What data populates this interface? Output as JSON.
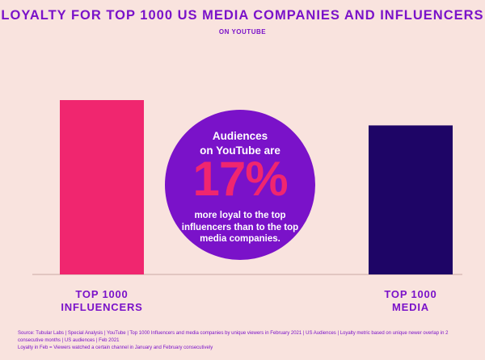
{
  "colors": {
    "background": "#f9e3de",
    "accent": "#7a12c9",
    "influencers_bar": "#f0266f",
    "media_bar": "#1e0566",
    "highlight": "#f0266f"
  },
  "chart_data": {
    "type": "bar",
    "title": "LOYALTY FOR TOP 1000 US MEDIA COMPANIES AND INFLUENCERS",
    "subtitle": "ON YOUTUBE",
    "categories": [
      "TOP 1000\nINFLUENCERS",
      "TOP 1000\nMEDIA"
    ],
    "values": [
      117,
      100
    ],
    "ylim": [
      0,
      117
    ],
    "grid": false,
    "annotation": {
      "lead": "Audiences\non YouTube are",
      "highlight": "17%",
      "trail": "more loyal to the top\ninfluencers than to the top\nmedia companies."
    }
  },
  "footnote": {
    "source": "Source: Tubular Labs | Special Analysis | YouTube | Top 1000 Influencers and media companies by unique viewers in February 2021 | US Audiences | Loyalty metric based on unique newer overlap in 2 consecutive months | US audiences | Feb 2021",
    "definition": "Loyalty in Feb = Viewers watched a certain channel in January and February consecutively"
  }
}
